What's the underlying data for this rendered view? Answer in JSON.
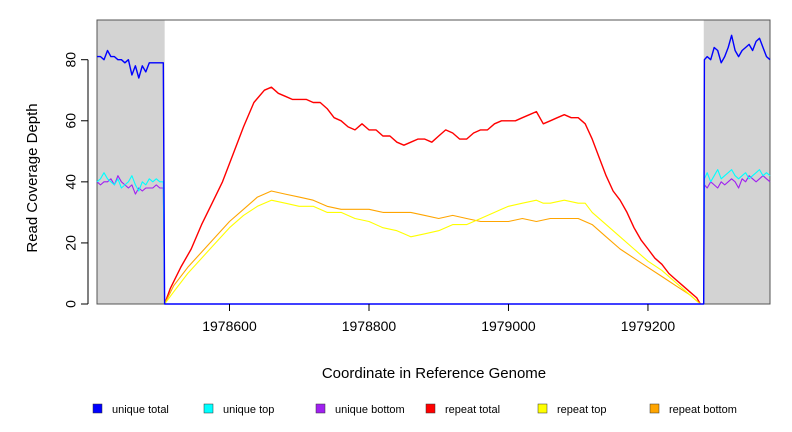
{
  "chart_data": {
    "type": "line",
    "title": "",
    "xlabel": "Coordinate in Reference Genome",
    "ylabel": "Read Coverage Depth",
    "xlim": [
      1978410,
      1979375
    ],
    "ylim": [
      0,
      93
    ],
    "x_ticks": [
      1978600,
      1978800,
      1979000,
      1979200
    ],
    "y_ticks": [
      0,
      20,
      40,
      60,
      80
    ],
    "shaded_regions": [
      {
        "from": 1978410,
        "to": 1978507,
        "color": "#d3d3d3"
      },
      {
        "from": 1979280,
        "to": 1979375,
        "color": "#d3d3d3"
      }
    ],
    "grid": false,
    "legend_position": "bottom",
    "legend": [
      {
        "label": "unique total",
        "color": "#0000ff"
      },
      {
        "label": "unique top",
        "color": "#00ffff"
      },
      {
        "label": "unique bottom",
        "color": "#a020f0"
      },
      {
        "label": "repeat total",
        "color": "#ff0000"
      },
      {
        "label": "repeat top",
        "color": "#ffff00"
      },
      {
        "label": "repeat bottom",
        "color": "#ffa500"
      }
    ],
    "series": [
      {
        "name": "unique total",
        "color": "#0000ff",
        "points": [
          [
            1978410,
            81
          ],
          [
            1978415,
            81
          ],
          [
            1978420,
            80
          ],
          [
            1978425,
            83
          ],
          [
            1978430,
            81
          ],
          [
            1978435,
            81
          ],
          [
            1978440,
            80
          ],
          [
            1978445,
            80
          ],
          [
            1978450,
            79
          ],
          [
            1978455,
            80
          ],
          [
            1978460,
            75
          ],
          [
            1978465,
            78
          ],
          [
            1978470,
            74
          ],
          [
            1978475,
            78
          ],
          [
            1978480,
            76
          ],
          [
            1978485,
            79
          ],
          [
            1978490,
            79
          ],
          [
            1978495,
            79
          ],
          [
            1978500,
            79
          ],
          [
            1978505,
            79
          ],
          [
            1978507,
            0
          ],
          [
            1979275,
            0
          ],
          [
            1979280,
            0
          ],
          [
            1979281,
            80
          ],
          [
            1979285,
            81
          ],
          [
            1979290,
            80
          ],
          [
            1979295,
            84
          ],
          [
            1979300,
            83
          ],
          [
            1979305,
            79
          ],
          [
            1979310,
            81
          ],
          [
            1979315,
            84
          ],
          [
            1979320,
            88
          ],
          [
            1979325,
            83
          ],
          [
            1979330,
            81
          ],
          [
            1979335,
            83
          ],
          [
            1979340,
            84
          ],
          [
            1979345,
            85
          ],
          [
            1979350,
            83
          ],
          [
            1979355,
            86
          ],
          [
            1979360,
            87
          ],
          [
            1979365,
            84
          ],
          [
            1979370,
            81
          ],
          [
            1979375,
            80
          ]
        ]
      },
      {
        "name": "unique top",
        "color": "#00ffff",
        "points": [
          [
            1978410,
            40
          ],
          [
            1978415,
            41
          ],
          [
            1978420,
            43
          ],
          [
            1978425,
            41
          ],
          [
            1978430,
            40
          ],
          [
            1978435,
            39
          ],
          [
            1978440,
            41
          ],
          [
            1978445,
            38
          ],
          [
            1978450,
            39
          ],
          [
            1978455,
            40
          ],
          [
            1978460,
            42
          ],
          [
            1978465,
            39
          ],
          [
            1978470,
            37
          ],
          [
            1978475,
            40
          ],
          [
            1978480,
            39
          ],
          [
            1978485,
            41
          ],
          [
            1978490,
            40
          ],
          [
            1978495,
            41
          ],
          [
            1978500,
            40
          ],
          [
            1978505,
            40
          ],
          [
            1978507,
            0
          ],
          [
            1979280,
            0
          ],
          [
            1979281,
            41
          ],
          [
            1979285,
            43
          ],
          [
            1979290,
            40
          ],
          [
            1979295,
            42
          ],
          [
            1979300,
            44
          ],
          [
            1979305,
            41
          ],
          [
            1979310,
            42
          ],
          [
            1979315,
            43
          ],
          [
            1979320,
            44
          ],
          [
            1979325,
            42
          ],
          [
            1979330,
            41
          ],
          [
            1979335,
            42
          ],
          [
            1979340,
            43
          ],
          [
            1979345,
            41
          ],
          [
            1979350,
            42
          ],
          [
            1979355,
            43
          ],
          [
            1979360,
            44
          ],
          [
            1979365,
            42
          ],
          [
            1979370,
            43
          ],
          [
            1979375,
            42
          ]
        ]
      },
      {
        "name": "unique bottom",
        "color": "#a020f0",
        "points": [
          [
            1978410,
            40
          ],
          [
            1978415,
            39
          ],
          [
            1978420,
            40
          ],
          [
            1978425,
            40
          ],
          [
            1978430,
            41
          ],
          [
            1978435,
            39
          ],
          [
            1978440,
            42
          ],
          [
            1978445,
            40
          ],
          [
            1978450,
            39
          ],
          [
            1978455,
            38
          ],
          [
            1978460,
            39
          ],
          [
            1978465,
            36
          ],
          [
            1978470,
            38
          ],
          [
            1978475,
            37
          ],
          [
            1978480,
            38
          ],
          [
            1978485,
            38
          ],
          [
            1978490,
            38
          ],
          [
            1978495,
            39
          ],
          [
            1978500,
            38
          ],
          [
            1978505,
            38
          ],
          [
            1978507,
            0
          ],
          [
            1979280,
            0
          ],
          [
            1979281,
            39
          ],
          [
            1979285,
            38
          ],
          [
            1979290,
            40
          ],
          [
            1979295,
            39
          ],
          [
            1979300,
            38
          ],
          [
            1979305,
            40
          ],
          [
            1979310,
            39
          ],
          [
            1979315,
            40
          ],
          [
            1979320,
            41
          ],
          [
            1979325,
            40
          ],
          [
            1979330,
            38
          ],
          [
            1979335,
            41
          ],
          [
            1979340,
            40
          ],
          [
            1979345,
            42
          ],
          [
            1979350,
            41
          ],
          [
            1979355,
            40
          ],
          [
            1979360,
            41
          ],
          [
            1979365,
            42
          ],
          [
            1979370,
            41
          ],
          [
            1979375,
            40
          ]
        ]
      },
      {
        "name": "repeat total",
        "color": "#ff0000",
        "points": [
          [
            1978507,
            0
          ],
          [
            1978515,
            5
          ],
          [
            1978530,
            12
          ],
          [
            1978545,
            18
          ],
          [
            1978560,
            26
          ],
          [
            1978575,
            33
          ],
          [
            1978590,
            40
          ],
          [
            1978605,
            49
          ],
          [
            1978620,
            58
          ],
          [
            1978635,
            66
          ],
          [
            1978650,
            70
          ],
          [
            1978660,
            71
          ],
          [
            1978670,
            69
          ],
          [
            1978680,
            68
          ],
          [
            1978690,
            67
          ],
          [
            1978700,
            67
          ],
          [
            1978710,
            67
          ],
          [
            1978720,
            66
          ],
          [
            1978730,
            66
          ],
          [
            1978740,
            64
          ],
          [
            1978750,
            61
          ],
          [
            1978760,
            60
          ],
          [
            1978770,
            58
          ],
          [
            1978780,
            57
          ],
          [
            1978790,
            59
          ],
          [
            1978800,
            57
          ],
          [
            1978810,
            57
          ],
          [
            1978820,
            55
          ],
          [
            1978830,
            55
          ],
          [
            1978840,
            53
          ],
          [
            1978850,
            52
          ],
          [
            1978860,
            53
          ],
          [
            1978870,
            54
          ],
          [
            1978880,
            54
          ],
          [
            1978890,
            53
          ],
          [
            1978900,
            55
          ],
          [
            1978910,
            57
          ],
          [
            1978920,
            56
          ],
          [
            1978930,
            54
          ],
          [
            1978940,
            54
          ],
          [
            1978950,
            56
          ],
          [
            1978960,
            57
          ],
          [
            1978970,
            57
          ],
          [
            1978980,
            59
          ],
          [
            1978990,
            60
          ],
          [
            1979000,
            60
          ],
          [
            1979010,
            60
          ],
          [
            1979020,
            61
          ],
          [
            1979030,
            62
          ],
          [
            1979040,
            63
          ],
          [
            1979050,
            59
          ],
          [
            1979060,
            60
          ],
          [
            1979070,
            61
          ],
          [
            1979080,
            62
          ],
          [
            1979090,
            61
          ],
          [
            1979100,
            61
          ],
          [
            1979110,
            59
          ],
          [
            1979120,
            54
          ],
          [
            1979130,
            48
          ],
          [
            1979140,
            42
          ],
          [
            1979150,
            37
          ],
          [
            1979160,
            34
          ],
          [
            1979170,
            30
          ],
          [
            1979180,
            25
          ],
          [
            1979190,
            21
          ],
          [
            1979200,
            18
          ],
          [
            1979210,
            15
          ],
          [
            1979220,
            13
          ],
          [
            1979230,
            10
          ],
          [
            1979240,
            8
          ],
          [
            1979250,
            6
          ],
          [
            1979260,
            4
          ],
          [
            1979270,
            2
          ],
          [
            1979275,
            0
          ]
        ]
      },
      {
        "name": "repeat top",
        "color": "#ffff00",
        "points": [
          [
            1978507,
            0
          ],
          [
            1978520,
            4
          ],
          [
            1978540,
            10
          ],
          [
            1978560,
            15
          ],
          [
            1978580,
            20
          ],
          [
            1978600,
            25
          ],
          [
            1978620,
            29
          ],
          [
            1978640,
            32
          ],
          [
            1978660,
            34
          ],
          [
            1978680,
            33
          ],
          [
            1978700,
            32
          ],
          [
            1978720,
            32
          ],
          [
            1978740,
            30
          ],
          [
            1978760,
            30
          ],
          [
            1978780,
            28
          ],
          [
            1978800,
            27
          ],
          [
            1978820,
            25
          ],
          [
            1978840,
            24
          ],
          [
            1978850,
            23
          ],
          [
            1978860,
            22
          ],
          [
            1978880,
            23
          ],
          [
            1978900,
            24
          ],
          [
            1978920,
            26
          ],
          [
            1978940,
            26
          ],
          [
            1978960,
            28
          ],
          [
            1978980,
            30
          ],
          [
            1978990,
            31
          ],
          [
            1979000,
            32
          ],
          [
            1979020,
            33
          ],
          [
            1979040,
            34
          ],
          [
            1979050,
            33
          ],
          [
            1979060,
            33
          ],
          [
            1979080,
            34
          ],
          [
            1979100,
            33
          ],
          [
            1979110,
            33
          ],
          [
            1979120,
            30
          ],
          [
            1979140,
            26
          ],
          [
            1979160,
            22
          ],
          [
            1979180,
            18
          ],
          [
            1979200,
            14
          ],
          [
            1979220,
            11
          ],
          [
            1979240,
            7
          ],
          [
            1979260,
            3
          ],
          [
            1979275,
            0
          ]
        ]
      },
      {
        "name": "repeat bottom",
        "color": "#ffa500",
        "points": [
          [
            1978507,
            0
          ],
          [
            1978520,
            6
          ],
          [
            1978540,
            12
          ],
          [
            1978560,
            17
          ],
          [
            1978580,
            22
          ],
          [
            1978600,
            27
          ],
          [
            1978620,
            31
          ],
          [
            1978640,
            35
          ],
          [
            1978660,
            37
          ],
          [
            1978680,
            36
          ],
          [
            1978700,
            35
          ],
          [
            1978720,
            34
          ],
          [
            1978740,
            32
          ],
          [
            1978760,
            31
          ],
          [
            1978780,
            31
          ],
          [
            1978800,
            31
          ],
          [
            1978820,
            30
          ],
          [
            1978840,
            30
          ],
          [
            1978860,
            30
          ],
          [
            1978880,
            29
          ],
          [
            1978900,
            28
          ],
          [
            1978920,
            29
          ],
          [
            1978940,
            28
          ],
          [
            1978960,
            27
          ],
          [
            1978980,
            27
          ],
          [
            1979000,
            27
          ],
          [
            1979020,
            28
          ],
          [
            1979040,
            27
          ],
          [
            1979060,
            28
          ],
          [
            1979080,
            28
          ],
          [
            1979100,
            28
          ],
          [
            1979120,
            26
          ],
          [
            1979140,
            22
          ],
          [
            1979160,
            18
          ],
          [
            1979180,
            15
          ],
          [
            1979200,
            12
          ],
          [
            1979220,
            9
          ],
          [
            1979240,
            6
          ],
          [
            1979260,
            3
          ],
          [
            1979275,
            0
          ]
        ]
      }
    ]
  }
}
